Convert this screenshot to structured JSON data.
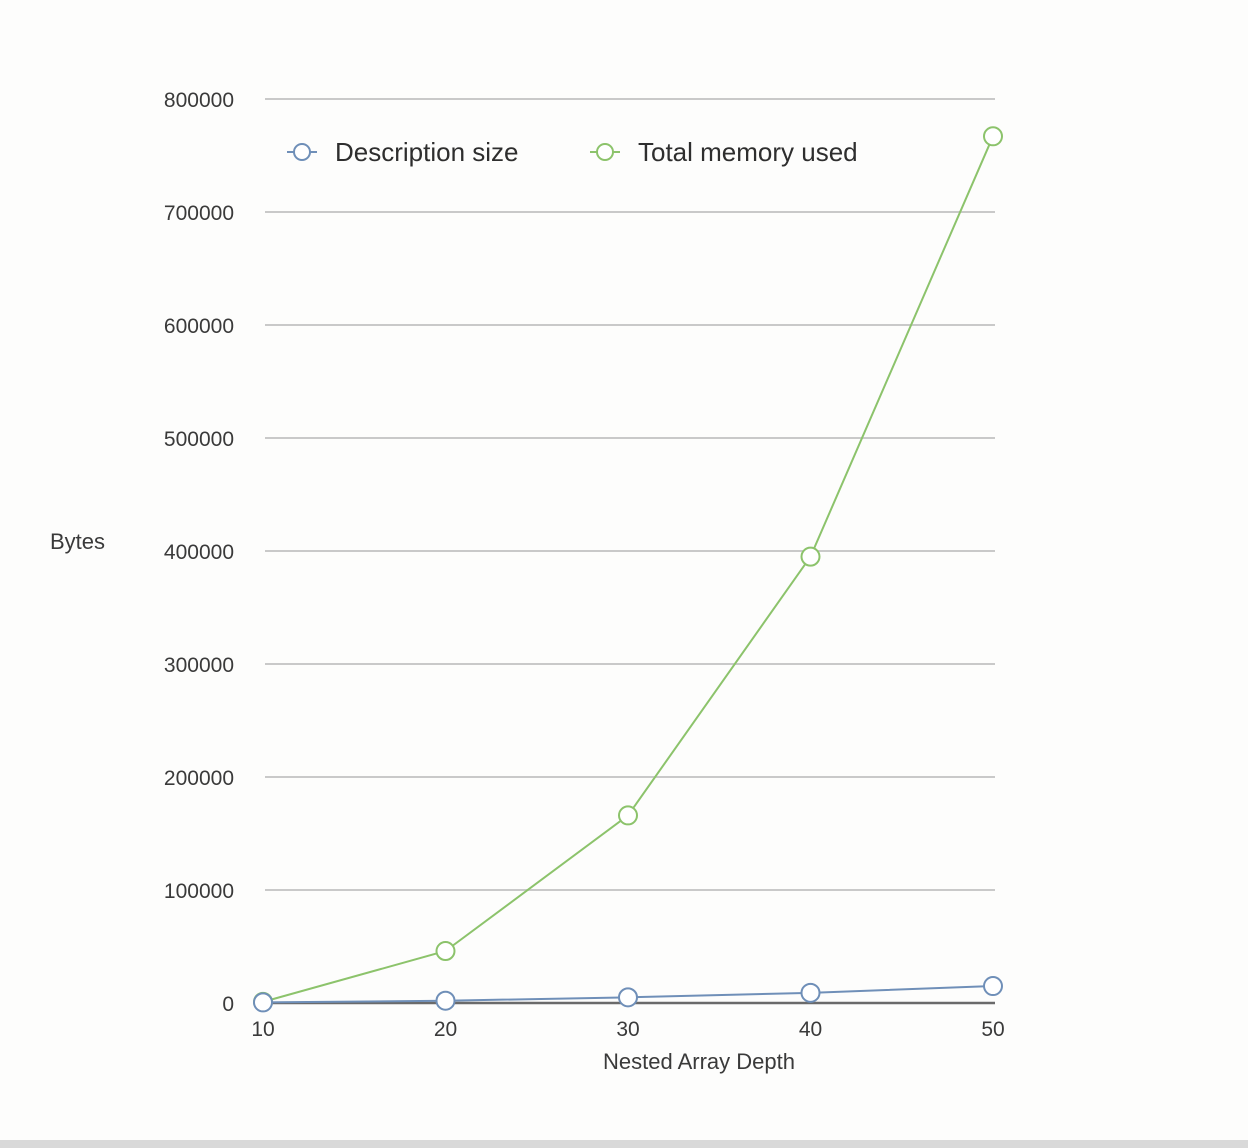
{
  "chart_data": {
    "type": "line",
    "title": "",
    "xlabel": "Nested Array Depth",
    "ylabel": "Bytes",
    "x": [
      10,
      20,
      30,
      40,
      50
    ],
    "xticks": [
      "10",
      "20",
      "30",
      "40",
      "50"
    ],
    "yticks": [
      "0",
      "100000",
      "200000",
      "300000",
      "400000",
      "500000",
      "600000",
      "700000",
      "800000"
    ],
    "ylim": [
      0,
      800000
    ],
    "xlim": [
      10,
      50
    ],
    "grid": true,
    "legend_position": "top",
    "series": [
      {
        "name": "Description size",
        "color": "#6f8fb8",
        "values": [
          500,
          2000,
          5000,
          9000,
          15000
        ]
      },
      {
        "name": "Total memory used",
        "color": "#8cc36b",
        "values": [
          1000,
          46000,
          166000,
          395000,
          767000
        ]
      }
    ]
  }
}
